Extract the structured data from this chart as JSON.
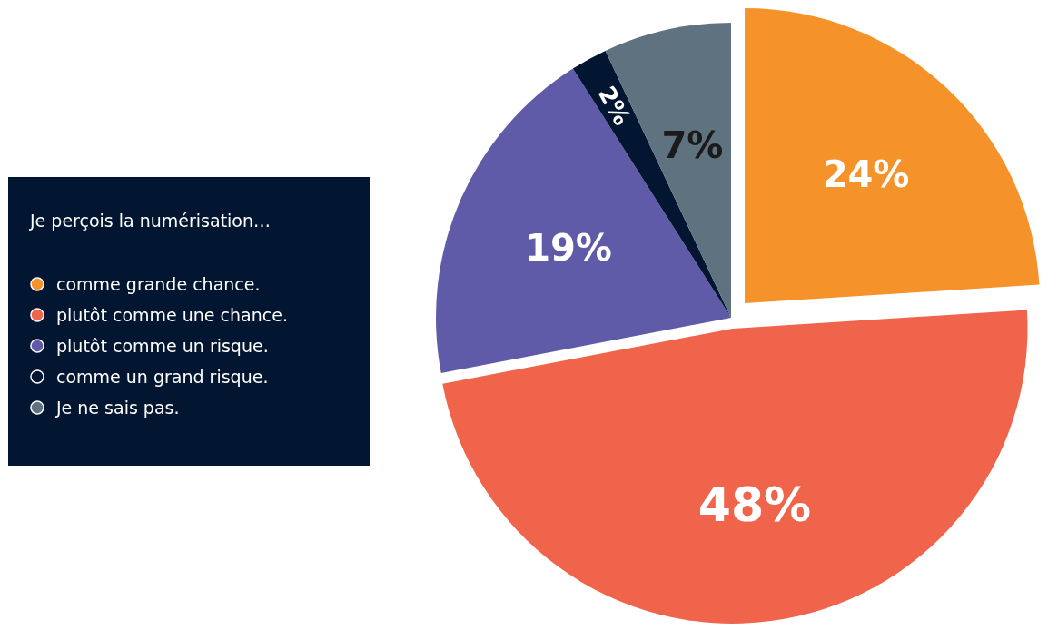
{
  "chart_data": {
    "type": "pie",
    "legend_title": "Je perçois la numérisation…",
    "categories": [
      "comme grande chance.",
      "plutôt comme une chance.",
      "plutôt comme un risque.",
      "comme un grand risque.",
      "Je ne sais pas."
    ],
    "values": [
      24,
      48,
      19,
      2,
      7
    ],
    "colors": [
      "#f5922a",
      "#f0644c",
      "#5f5ba8",
      "#021531",
      "#5f7280"
    ],
    "value_labels": [
      "24%",
      "48%",
      "19%",
      "2%",
      "7%"
    ],
    "legend": "left"
  }
}
